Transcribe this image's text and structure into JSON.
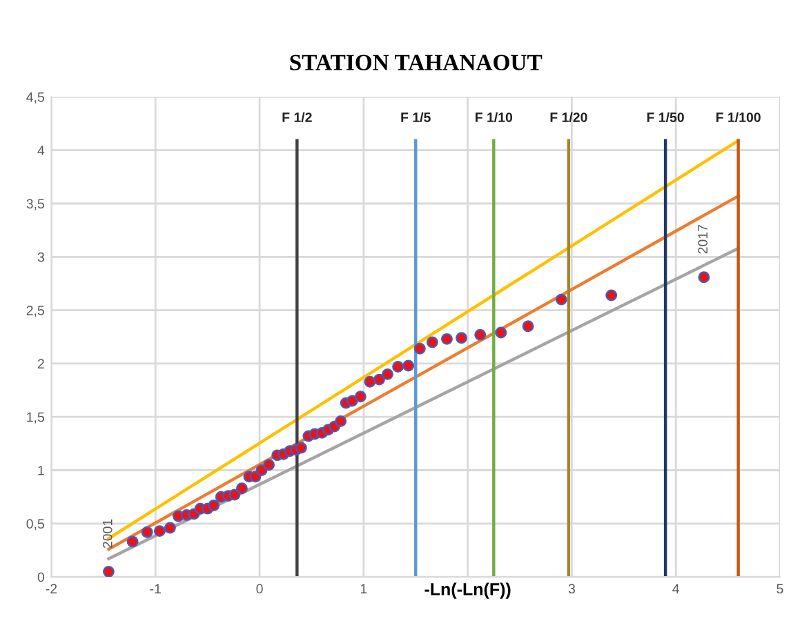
{
  "chart_data": {
    "type": "scatter",
    "title": "STATION TAHANAOUT",
    "xlabel": "-Ln(-Ln(F))",
    "xlim": [
      -2,
      5
    ],
    "ylim": [
      0,
      4.5
    ],
    "xticks": [
      -2,
      -1,
      0,
      1,
      {
        "value": 2,
        "label": null
      },
      3,
      4,
      5
    ],
    "yticks": [
      {
        "value": 0,
        "label": "0"
      },
      {
        "value": 0.5,
        "label": "0,5"
      },
      {
        "value": 1,
        "label": "1"
      },
      {
        "value": 1.5,
        "label": "1,5"
      },
      {
        "value": 2,
        "label": "2"
      },
      {
        "value": 2.5,
        "label": "2,5"
      },
      {
        "value": 3,
        "label": "3"
      },
      {
        "value": 3.5,
        "label": "3,5"
      },
      {
        "value": 4,
        "label": "4"
      },
      {
        "value": 4.5,
        "label": "4,5"
      }
    ],
    "grid": true,
    "legend": false,
    "series": [
      {
        "type": "line",
        "color": "#ffc000",
        "x": [
          -1.45,
          4.6
        ],
        "values": [
          0.36,
          4.09
        ]
      },
      {
        "type": "line",
        "color": "#ed7d31",
        "x": [
          -1.45,
          4.6
        ],
        "values": [
          0.26,
          3.57
        ]
      },
      {
        "type": "line",
        "color": "#a5a5a5",
        "x": [
          -1.45,
          4.6
        ],
        "values": [
          0.17,
          3.08
        ]
      },
      {
        "type": "line",
        "name": "F 1/2",
        "color": "#404040",
        "x": [
          0.36,
          0.36
        ],
        "values": [
          0,
          4.09
        ]
      },
      {
        "type": "line",
        "name": "F 1/5",
        "color": "#5b9bd5",
        "x": [
          1.5,
          1.5
        ],
        "values": [
          0,
          4.09
        ]
      },
      {
        "type": "line",
        "name": "F 1/10",
        "color": "#70ad47",
        "x": [
          2.25,
          2.25
        ],
        "values": [
          0,
          4.09
        ]
      },
      {
        "type": "line",
        "name": "F 1/20",
        "color": "#a5842a",
        "x": [
          2.97,
          2.97
        ],
        "values": [
          0,
          4.09
        ]
      },
      {
        "type": "line",
        "name": "F 1/50",
        "color": "#1f3864",
        "x": [
          3.9,
          3.9
        ],
        "values": [
          0,
          4.09
        ]
      },
      {
        "type": "line",
        "name": "F 1/100",
        "color": "#c55a11",
        "x": [
          4.6,
          4.6
        ],
        "values": [
          0,
          4.09
        ]
      },
      {
        "marker": "circle",
        "color": "#e8141c",
        "x": [
          -1.45,
          -1.22,
          -1.08,
          -0.96,
          -0.86,
          -0.78,
          -0.7,
          -0.63,
          -0.57,
          -0.5,
          -0.44,
          -0.37,
          -0.3,
          -0.24,
          -0.17,
          -0.1,
          -0.04,
          0.02,
          0.09,
          0.17,
          0.23,
          0.29,
          0.35,
          0.4,
          0.47,
          0.53,
          0.6,
          0.66,
          0.72,
          0.78,
          0.83,
          0.89,
          0.97,
          1.06,
          1.15,
          1.23,
          1.33,
          1.43,
          1.54,
          1.66,
          1.8,
          1.94,
          2.12,
          2.32,
          2.58,
          2.9,
          3.38,
          4.27
        ],
        "values": [
          0.05,
          0.33,
          0.42,
          0.43,
          0.46,
          0.57,
          0.58,
          0.59,
          0.64,
          0.64,
          0.67,
          0.75,
          0.76,
          0.77,
          0.83,
          0.94,
          0.94,
          1.0,
          1.05,
          1.14,
          1.15,
          1.18,
          1.19,
          1.21,
          1.32,
          1.34,
          1.35,
          1.38,
          1.41,
          1.46,
          1.63,
          1.65,
          1.69,
          1.83,
          1.85,
          1.9,
          1.97,
          1.98,
          2.14,
          2.2,
          2.23,
          2.24,
          2.27,
          2.29,
          2.35,
          2.6,
          2.64,
          2.81
        ]
      }
    ],
    "annotations": [
      {
        "text": "2001",
        "x": -1.45,
        "y": 0.05
      },
      {
        "text": "2017",
        "x": 4.27,
        "y": 2.81
      }
    ]
  }
}
